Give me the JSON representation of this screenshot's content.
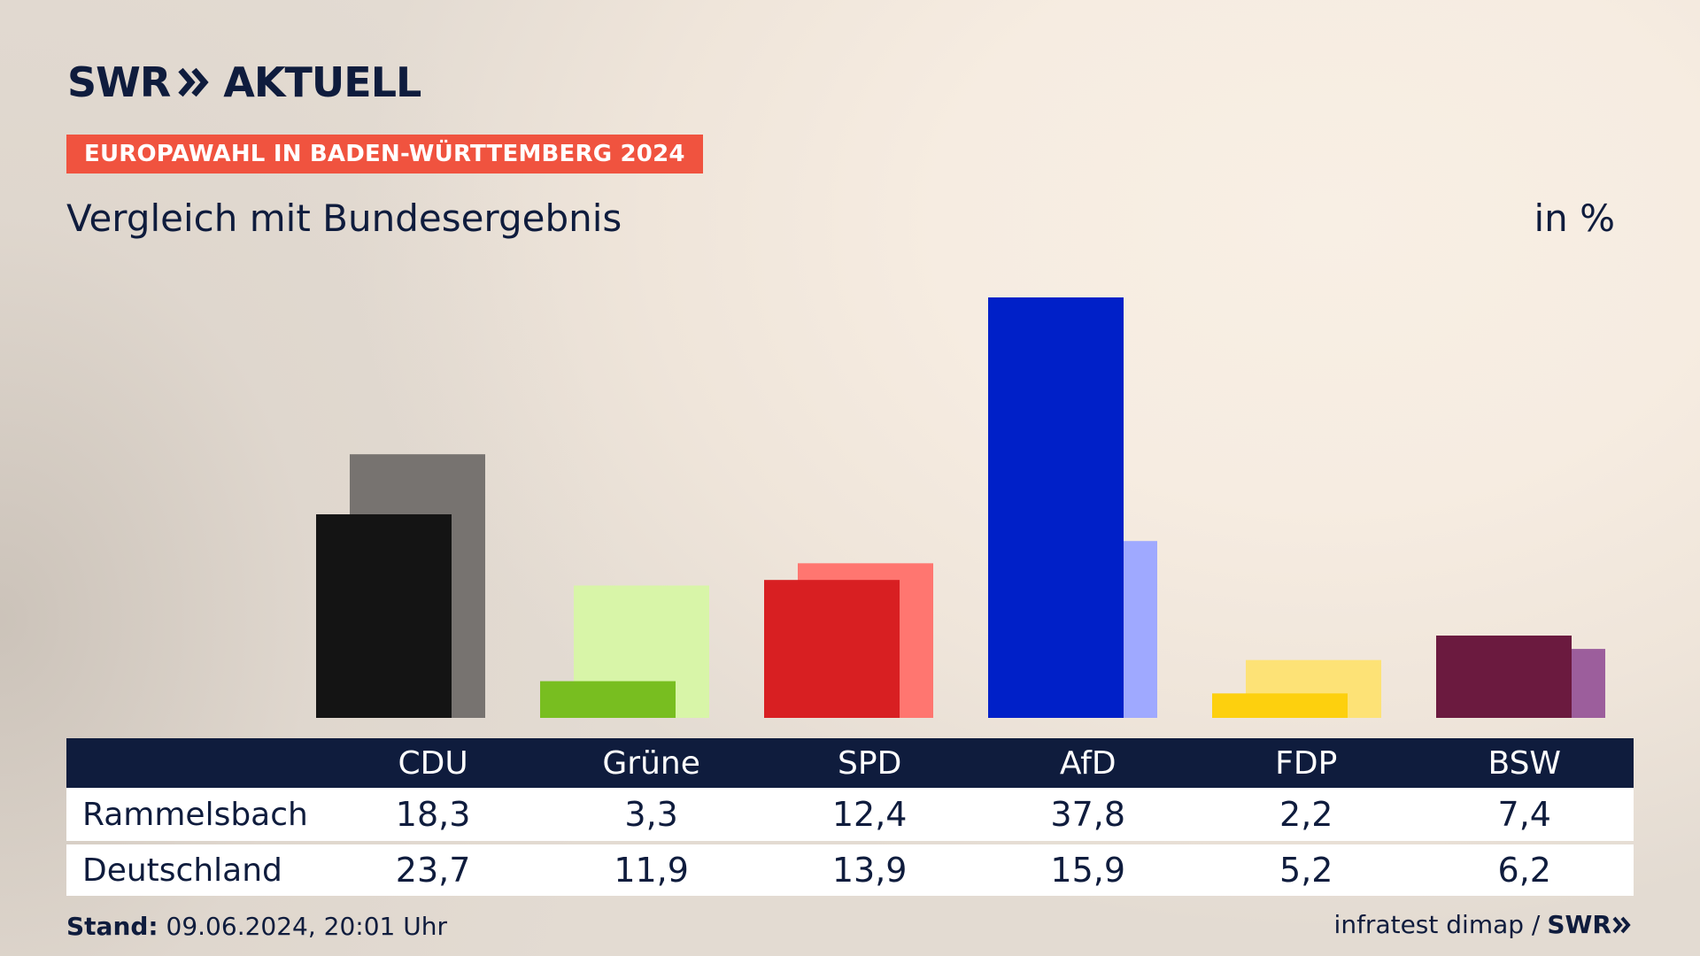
{
  "brand": {
    "name": "SWR",
    "product": "AKTUELL",
    "color": "#0f1c3d"
  },
  "header": {
    "badge": "EUROPAWAHL IN BADEN-WÜRTTEMBERG 2024",
    "badge_color": "#f0533f",
    "subtitle": "Vergleich mit Bundesergebnis",
    "unit": "in %"
  },
  "table": {
    "row_labels": [
      "Rammelsbach",
      "Deutschland"
    ]
  },
  "chart_data": {
    "type": "bar",
    "categories": [
      "CDU",
      "Grüne",
      "SPD",
      "AfD",
      "FDP",
      "BSW"
    ],
    "series": [
      {
        "name": "Rammelsbach",
        "values": [
          "18,3",
          "3,3",
          "12,4",
          "37,8",
          "2,2",
          "7,4"
        ],
        "numeric": [
          18.3,
          3.3,
          12.4,
          37.8,
          2.2,
          7.4
        ],
        "colors": [
          "#141414",
          "#78be20",
          "#d81f22",
          "#0020c8",
          "#fdd00e",
          "#6b1a3f"
        ]
      },
      {
        "name": "Deutschland",
        "values": [
          "23,7",
          "11,9",
          "13,9",
          "15,9",
          "5,2",
          "6,2"
        ],
        "numeric": [
          23.7,
          11.9,
          13.9,
          15.9,
          5.2,
          6.2
        ],
        "colors": [
          "#777370",
          "#d8f5a8",
          "#ff7670",
          "#9fa9ff",
          "#fde276",
          "#9c5e9c"
        ]
      }
    ],
    "ylim": [
      0,
      40
    ],
    "grid": false,
    "legend": "table-below"
  },
  "footer": {
    "stand_label": "Stand:",
    "stand_value": "09.06.2024, 20:01 Uhr",
    "source": "infratest dimap /",
    "source_brand": "SWR"
  }
}
